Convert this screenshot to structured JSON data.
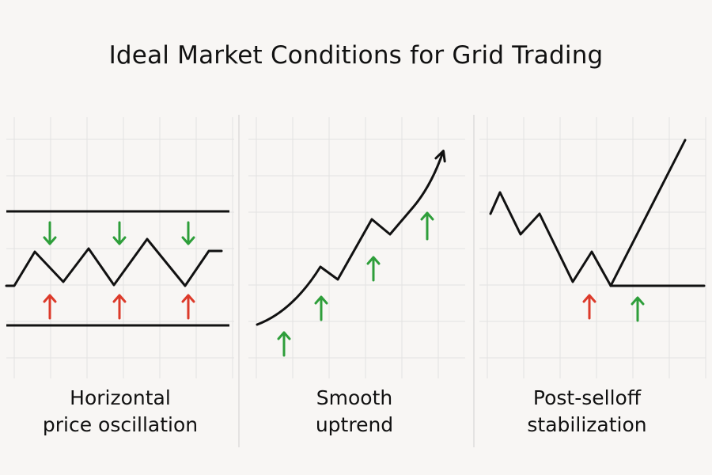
{
  "title": "Ideal Market Conditions for Grid Trading",
  "colors": {
    "background": "#f8f6f4",
    "grid": "#e2e2e2",
    "line": "#111111",
    "buy_arrow": "#2e9e3a",
    "sell_arrow": "#dc3a2a"
  },
  "panels": [
    {
      "name": "horizontal",
      "caption": [
        "Horizontal",
        "price oscillation"
      ],
      "arrows_down": 3,
      "arrows_up": 3
    },
    {
      "name": "uptrend",
      "caption": [
        "Smooth",
        "uptrend"
      ],
      "arrows_up": 4
    },
    {
      "name": "post-selloff",
      "caption": [
        "Post-selloff",
        "stabilization"
      ],
      "arrows_up_red": 1,
      "arrows_up_green": 1
    }
  ]
}
